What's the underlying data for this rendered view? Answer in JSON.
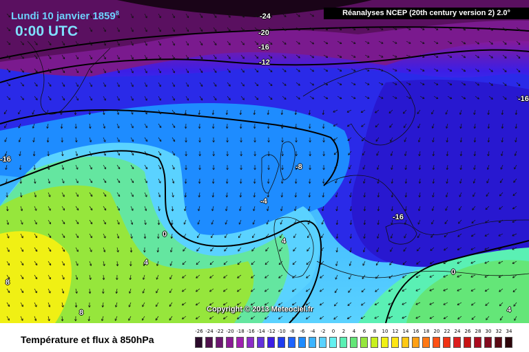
{
  "map": {
    "date": "Lundi 10 janvier 1859",
    "date_suffix": "8",
    "time": "0:00 UTC",
    "source": "Réanalyses NCEP (20th century version 2) 2.0°",
    "copyright": "Copyright © 2013 Meteociel.fr",
    "contour_labels": [
      "-24",
      "-20",
      "-16",
      "-12",
      "-16",
      "-8",
      "-4",
      "-16",
      "0",
      "0",
      "4",
      "4",
      "8",
      "8",
      "-16",
      "4"
    ]
  },
  "footer": {
    "title": "Température et flux à 850hPa"
  },
  "legend": {
    "levels": [
      "-26",
      "-24",
      "-22",
      "-20",
      "-18",
      "-16",
      "-14",
      "-12",
      "-10",
      "-8",
      "-6",
      "-4",
      "-2",
      "0",
      "2",
      "4",
      "6",
      "8",
      "10",
      "12",
      "14",
      "16",
      "18",
      "20",
      "22",
      "24",
      "26",
      "28",
      "30",
      "32",
      "34"
    ],
    "colors": [
      "#2a0a2a",
      "#50104c",
      "#6c1670",
      "#8a1a94",
      "#a020b0",
      "#8c2cc8",
      "#6432dc",
      "#3c1ee6",
      "#1e3cf0",
      "#1e64ff",
      "#1e8cff",
      "#3cb4ff",
      "#5ad2ff",
      "#64f0f0",
      "#5af0b4",
      "#64e678",
      "#96e63c",
      "#c8f01e",
      "#f0f014",
      "#ffe614",
      "#ffc814",
      "#ffa014",
      "#ff7814",
      "#ff5014",
      "#f03214",
      "#dc1e1e",
      "#c81414",
      "#aa0a1e",
      "#820a1e",
      "#5a0a14",
      "#2d050a"
    ]
  }
}
